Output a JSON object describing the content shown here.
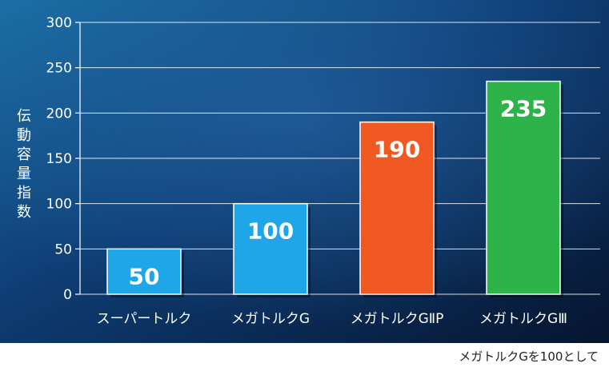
{
  "chart_data": {
    "type": "bar",
    "categories": [
      "スーパートルク",
      "メガトルクG",
      "メガトルクGⅡP",
      "メガトルクGⅢ"
    ],
    "values": [
      50,
      100,
      190,
      235
    ],
    "ylabel": "伝動容量指数",
    "ylim": [
      0,
      300
    ],
    "yticks": [
      0,
      50,
      100,
      150,
      200,
      250,
      300
    ],
    "grid": true,
    "colors": [
      "#1ea6e8",
      "#1ea6e8",
      "#f05a22",
      "#2db34a"
    ],
    "background": "#0b2a57"
  },
  "note": "メガトルクGを100として"
}
